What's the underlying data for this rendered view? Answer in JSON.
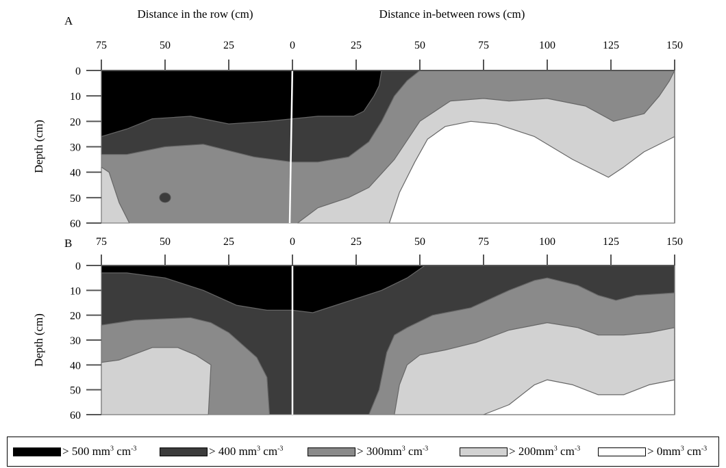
{
  "chart_data": {
    "type": "heatmap",
    "x_header_row": "Distance in the row (cm)",
    "x_header_between": "Distance in-between rows (cm)",
    "ylabel": "Depth (cm)",
    "x_ticks": [
      "75",
      "50",
      "25",
      "0",
      "25",
      "50",
      "75",
      "100",
      "125",
      "150"
    ],
    "y_ticks": [
      "0",
      "10",
      "20",
      "30",
      "40",
      "50",
      "60"
    ],
    "x_range_cm": [
      -75,
      150
    ],
    "depth_range_cm": [
      0,
      60
    ],
    "legend": [
      {
        "label": "> 500 mm",
        "exp": "3",
        "unit": " cm",
        "unit_exp": "-3",
        "color": "#000000"
      },
      {
        "label": "> 400 mm",
        "exp": "3",
        "unit": " cm",
        "unit_exp": "-3",
        "color": "#3c3c3c"
      },
      {
        "label": "> 300mm",
        "exp": "3",
        "unit": " cm",
        "unit_exp": "-3",
        "color": "#8a8a8a"
      },
      {
        "label": "> 200mm",
        "exp": "3",
        "unit": " cm",
        "unit_exp": "-3",
        "color": "#d2d2d2"
      },
      {
        "label": "> 0mm",
        "exp": "3",
        "unit": " cm",
        "unit_exp": "-3",
        "color": "#ffffff"
      }
    ],
    "panels": [
      {
        "label": "A",
        "layers": [
          {
            "color": "#8a8a8a",
            "pts": [
              [
                -75,
                38
              ],
              [
                -72,
                40
              ],
              [
                -67,
                60
              ],
              [
                -75,
                60
              ]
            ]
          },
          {
            "color": "#d2d2d2",
            "pts": [
              [
                -75,
                38
              ],
              [
                -72,
                40
              ],
              [
                -67,
                60
              ],
              [
                -75,
                60
              ]
            ]
          },
          {
            "color": "#3c3c3c",
            "pts": [
              [
                -75,
                0
              ],
              [
                -20,
                0
              ],
              [
                -20,
                60
              ],
              [
                -75,
                60
              ]
            ]
          }
        ],
        "regions": [
          {
            "color": "#8a8a8a",
            "pts": [
              [
                -75,
                0
              ],
              [
                150,
                0
              ],
              [
                150,
                60
              ],
              [
                -75,
                60
              ]
            ]
          },
          {
            "color": "#3c3c3c",
            "pts": [
              [
                -75,
                0
              ],
              [
                50,
                0
              ],
              [
                45,
                4
              ],
              [
                40,
                10
              ],
              [
                35,
                20
              ],
              [
                30,
                28
              ],
              [
                22,
                34
              ],
              [
                10,
                36
              ],
              [
                0,
                36
              ],
              [
                -15,
                34
              ],
              [
                -35,
                29
              ],
              [
                -50,
                30
              ],
              [
                -65,
                33
              ],
              [
                -75,
                33
              ]
            ]
          },
          {
            "color": "#000000",
            "pts": [
              [
                -75,
                0
              ],
              [
                35,
                0
              ],
              [
                34,
                6
              ],
              [
                32,
                10
              ],
              [
                28,
                16
              ],
              [
                24,
                18
              ],
              [
                10,
                18
              ],
              [
                0,
                19
              ],
              [
                -10,
                20
              ],
              [
                -25,
                21
              ],
              [
                -40,
                18
              ],
              [
                -55,
                19
              ],
              [
                -65,
                23
              ],
              [
                -75,
                26
              ]
            ]
          },
          {
            "color": "#d2d2d2",
            "pts": [
              [
                150,
                0
              ],
              [
                148,
                4
              ],
              [
                144,
                10
              ],
              [
                138,
                17
              ],
              [
                126,
                20
              ],
              [
                115,
                14
              ],
              [
                100,
                11
              ],
              [
                85,
                12
              ],
              [
                75,
                11
              ],
              [
                62,
                12
              ],
              [
                50,
                20
              ],
              [
                40,
                35
              ],
              [
                30,
                46
              ],
              [
                22,
                50
              ],
              [
                10,
                54
              ],
              [
                2,
                60
              ],
              [
                150,
                60
              ]
            ]
          },
          {
            "color": "#ffffff",
            "pts": [
              [
                150,
                26
              ],
              [
                138,
                32
              ],
              [
                130,
                38
              ],
              [
                124,
                42
              ],
              [
                110,
                35
              ],
              [
                95,
                26
              ],
              [
                80,
                21
              ],
              [
                70,
                20
              ],
              [
                60,
                22
              ],
              [
                53,
                27
              ],
              [
                48,
                36
              ],
              [
                42,
                48
              ],
              [
                38,
                60
              ],
              [
                150,
                60
              ]
            ]
          },
          {
            "color": "#d2d2d2",
            "pts": [
              [
                -75,
                38
              ],
              [
                -72,
                40
              ],
              [
                -68,
                52
              ],
              [
                -64,
                60
              ],
              [
                -75,
                60
              ]
            ]
          },
          {
            "color": "#3c3c3c",
            "circle": [
              50,
              50,
              2.3
            ]
          }
        ]
      },
      {
        "label": "B",
        "regions": [
          {
            "color": "#3c3c3c",
            "pts": [
              [
                -75,
                0
              ],
              [
                150,
                0
              ],
              [
                150,
                60
              ],
              [
                -75,
                60
              ]
            ]
          },
          {
            "color": "#000000",
            "pts": [
              [
                -75,
                0
              ],
              [
                52,
                0
              ],
              [
                45,
                5
              ],
              [
                35,
                10
              ],
              [
                20,
                15
              ],
              [
                8,
                19
              ],
              [
                0,
                18
              ],
              [
                -10,
                18
              ],
              [
                -22,
                16
              ],
              [
                -35,
                10
              ],
              [
                -50,
                5
              ],
              [
                -65,
                3
              ],
              [
                -75,
                3
              ]
            ]
          },
          {
            "color": "#8a8a8a",
            "pts": [
              [
                -75,
                24
              ],
              [
                -62,
                22
              ],
              [
                -40,
                21
              ],
              [
                -32,
                23
              ],
              [
                -25,
                27
              ],
              [
                -14,
                37
              ],
              [
                -10,
                45
              ],
              [
                -9,
                60
              ],
              [
                -75,
                60
              ]
            ]
          },
          {
            "color": "#d2d2d2",
            "pts": [
              [
                -75,
                39
              ],
              [
                -68,
                38
              ],
              [
                -55,
                33
              ],
              [
                -45,
                33
              ],
              [
                -38,
                36
              ],
              [
                -32,
                40
              ],
              [
                -33,
                60
              ],
              [
                -75,
                60
              ]
            ]
          },
          {
            "color": "#8a8a8a",
            "pts": [
              [
                30,
                60
              ],
              [
                34,
                50
              ],
              [
                37,
                35
              ],
              [
                40,
                28
              ],
              [
                45,
                25
              ],
              [
                55,
                20
              ],
              [
                70,
                17
              ],
              [
                85,
                10
              ],
              [
                95,
                6
              ],
              [
                100,
                5
              ],
              [
                112,
                8
              ],
              [
                120,
                12
              ],
              [
                127,
                14
              ],
              [
                135,
                12
              ],
              [
                150,
                11
              ],
              [
                150,
                60
              ]
            ]
          },
          {
            "color": "#d2d2d2",
            "pts": [
              [
                40,
                60
              ],
              [
                42,
                48
              ],
              [
                45,
                40
              ],
              [
                50,
                36
              ],
              [
                60,
                34
              ],
              [
                72,
                31
              ],
              [
                85,
                26
              ],
              [
                100,
                23
              ],
              [
                112,
                25
              ],
              [
                120,
                28
              ],
              [
                130,
                28
              ],
              [
                140,
                27
              ],
              [
                150,
                25
              ],
              [
                150,
                60
              ]
            ]
          },
          {
            "color": "#ffffff",
            "pts": [
              [
                75,
                60
              ],
              [
                85,
                56
              ],
              [
                95,
                48
              ],
              [
                100,
                46
              ],
              [
                110,
                48
              ],
              [
                120,
                52
              ],
              [
                130,
                52
              ],
              [
                140,
                48
              ],
              [
                150,
                46
              ],
              [
                150,
                60
              ]
            ]
          }
        ]
      }
    ]
  }
}
